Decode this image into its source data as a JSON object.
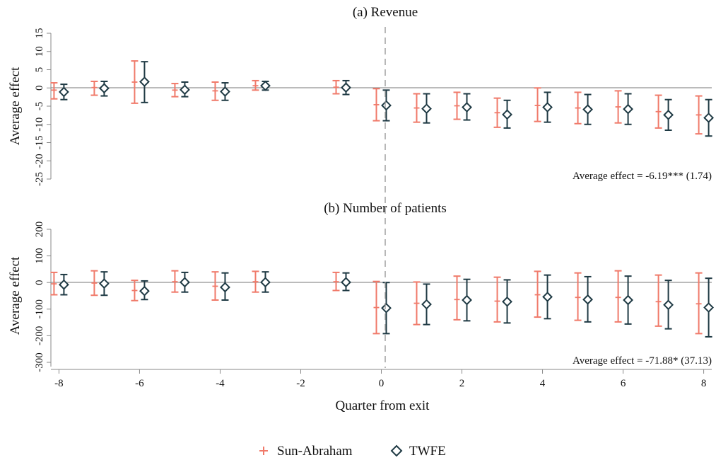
{
  "colors": {
    "sun_abraham": "#f07a6a",
    "twfe": "#1f3a44",
    "axis": "#8a8a8a",
    "zero_line": "#777777",
    "exit_line": "#999999"
  },
  "x_axis": {
    "label": "Quarter from exit",
    "ticks": [
      -8,
      -6,
      -4,
      -2,
      0,
      2,
      4,
      6,
      8
    ],
    "range": [
      -8.2,
      8.2
    ]
  },
  "legend": {
    "position": "bottom-center",
    "items": [
      {
        "name": "Sun-Abraham",
        "marker": "plus-icon"
      },
      {
        "name": "TWFE",
        "marker": "diamond-icon"
      }
    ]
  },
  "chart_data": [
    {
      "type": "scatter",
      "title": "(a) Revenue",
      "ylabel": "Average effect",
      "ylim": [
        -25,
        15
      ],
      "yticks": [
        15,
        10,
        5,
        0,
        -5,
        -10,
        -15,
        -20,
        -25
      ],
      "annotation": "Average effect = -6.19*** (1.74)",
      "series": [
        {
          "name": "Sun-Abraham",
          "x": [
            -8,
            -7,
            -6,
            -5,
            -4,
            -3,
            -1,
            0,
            1,
            2,
            3,
            4,
            5,
            6,
            7,
            8
          ],
          "y": [
            -0.6,
            0.1,
            1.6,
            -0.6,
            -0.8,
            0.6,
            0.2,
            -4.6,
            -5.5,
            -4.9,
            -6.8,
            -4.8,
            -5.5,
            -5.2,
            -6.5,
            -7.4
          ],
          "lo": [
            -3.0,
            -2.0,
            -4.2,
            -2.4,
            -3.4,
            -0.6,
            -1.6,
            -9.0,
            -9.4,
            -8.6,
            -10.8,
            -9.2,
            -9.8,
            -9.6,
            -11.0,
            -12.6
          ],
          "hi": [
            1.4,
            1.8,
            7.4,
            1.2,
            1.6,
            2.0,
            2.0,
            -0.2,
            -1.6,
            -1.2,
            -2.8,
            0.0,
            -1.2,
            -0.8,
            -2.0,
            -2.2
          ]
        },
        {
          "name": "TWFE",
          "x": [
            -8,
            -7,
            -6,
            -5,
            -4,
            -3,
            -1,
            0,
            1,
            2,
            3,
            4,
            5,
            6,
            7,
            8
          ],
          "y": [
            -1.1,
            -0.1,
            1.7,
            -0.5,
            -1.0,
            0.6,
            0.1,
            -4.8,
            -5.7,
            -5.3,
            -7.3,
            -5.3,
            -5.9,
            -5.8,
            -7.4,
            -8.2
          ],
          "lo": [
            -3.2,
            -2.2,
            -4.0,
            -2.4,
            -3.4,
            -0.6,
            -1.8,
            -9.0,
            -9.6,
            -8.8,
            -11.0,
            -9.4,
            -10.0,
            -10.0,
            -11.6,
            -13.2
          ],
          "hi": [
            1.0,
            1.8,
            7.2,
            1.6,
            1.4,
            1.8,
            2.0,
            -0.6,
            -1.6,
            -1.6,
            -3.4,
            -1.2,
            -1.8,
            -1.6,
            -3.2,
            -3.2
          ]
        }
      ]
    },
    {
      "type": "scatter",
      "title": "(b) Number of patients",
      "ylabel": "Average effect",
      "ylim": [
        -300,
        200
      ],
      "yticks": [
        200,
        100,
        0,
        -100,
        -200,
        -300
      ],
      "annotation": "Average effect = -71.88* (37.13)",
      "series": [
        {
          "name": "Sun-Abraham",
          "x": [
            -8,
            -7,
            -6,
            -5,
            -4,
            -3,
            -1,
            0,
            1,
            2,
            3,
            4,
            5,
            6,
            7,
            8
          ],
          "y": [
            -5,
            -2,
            -30,
            3,
            -14,
            3,
            3,
            -94,
            -78,
            -64,
            -70,
            -46,
            -56,
            -56,
            -72,
            -80
          ],
          "lo": [
            -46,
            -48,
            -68,
            -36,
            -66,
            -36,
            -30,
            -192,
            -158,
            -140,
            -148,
            -130,
            -142,
            -148,
            -164,
            -192
          ],
          "hi": [
            38,
            44,
            8,
            44,
            40,
            42,
            38,
            4,
            2,
            24,
            20,
            42,
            36,
            44,
            28,
            36
          ]
        },
        {
          "name": "TWFE",
          "x": [
            -8,
            -7,
            -6,
            -5,
            -4,
            -3,
            -1,
            0,
            1,
            2,
            3,
            4,
            5,
            6,
            7,
            8
          ],
          "y": [
            -8,
            -4,
            -32,
            1,
            -18,
            1,
            1,
            -96,
            -82,
            -66,
            -72,
            -54,
            -64,
            -66,
            -84,
            -94
          ],
          "lo": [
            -46,
            -48,
            -64,
            -36,
            -66,
            -36,
            -30,
            -192,
            -158,
            -144,
            -152,
            -136,
            -148,
            -156,
            -174,
            -204
          ],
          "hi": [
            30,
            40,
            6,
            38,
            36,
            40,
            36,
            0,
            -6,
            12,
            10,
            28,
            22,
            24,
            8,
            16
          ]
        }
      ]
    }
  ]
}
